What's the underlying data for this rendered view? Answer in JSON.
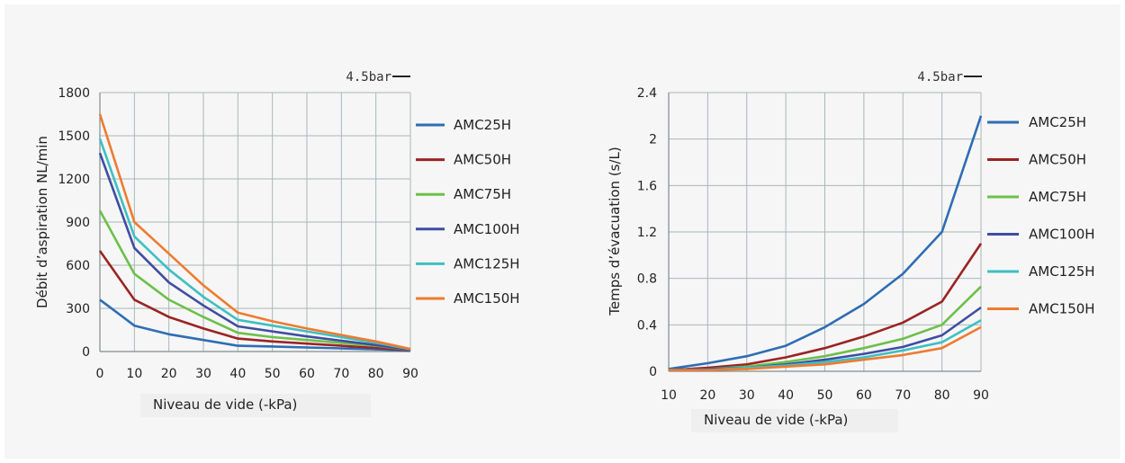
{
  "colors": {
    "AMC25H": "#2e6db4",
    "AMC50H": "#9b2424",
    "AMC75H": "#6cc04a",
    "AMC100H": "#3f4da0",
    "AMC125H": "#3fbfc2",
    "AMC150H": "#ee7b2f",
    "grid": "#a9b7b7",
    "axis": "#7f8c8c"
  },
  "chart_data": [
    {
      "type": "line",
      "annotation": "4.5bar",
      "xlabel": "Niveau de vide (-kPa)",
      "ylabel": "Débit d’aspiration NL/min",
      "x": [
        0,
        10,
        20,
        30,
        40,
        50,
        60,
        70,
        80,
        90
      ],
      "x_ticks": [
        "0",
        "10",
        "20",
        "30",
        "40",
        "50",
        "60",
        "70",
        "80",
        "90"
      ],
      "y_ticks": [
        "0",
        "300",
        "600",
        "900",
        "1200",
        "1500",
        "1800"
      ],
      "y_tick_values": [
        0,
        300,
        600,
        900,
        1200,
        1500,
        1800
      ],
      "xlim": [
        0,
        90
      ],
      "ylim": [
        0,
        1800
      ],
      "grid": true,
      "legend_position": "right",
      "series": [
        {
          "name": "AMC25H",
          "values": [
            360,
            180,
            120,
            80,
            40,
            35,
            28,
            22,
            15,
            5
          ]
        },
        {
          "name": "AMC50H",
          "values": [
            700,
            360,
            240,
            160,
            90,
            70,
            55,
            40,
            25,
            10
          ]
        },
        {
          "name": "AMC75H",
          "values": [
            980,
            540,
            360,
            240,
            130,
            100,
            80,
            60,
            40,
            12
          ]
        },
        {
          "name": "AMC100H",
          "values": [
            1380,
            720,
            480,
            320,
            175,
            140,
            105,
            75,
            45,
            14
          ]
        },
        {
          "name": "AMC125H",
          "values": [
            1480,
            800,
            570,
            380,
            220,
            180,
            140,
            100,
            60,
            16
          ]
        },
        {
          "name": "AMC150H",
          "values": [
            1650,
            900,
            680,
            460,
            270,
            210,
            160,
            115,
            70,
            18
          ]
        }
      ]
    },
    {
      "type": "line",
      "annotation": "4.5bar",
      "xlabel": "Niveau de vide (-kPa)",
      "ylabel": "Temps d’évacuation (s/L)",
      "x": [
        10,
        20,
        30,
        40,
        50,
        60,
        70,
        80,
        90
      ],
      "x_ticks": [
        "10",
        "20",
        "30",
        "40",
        "50",
        "60",
        "70",
        "80",
        "90"
      ],
      "y_ticks": [
        "0",
        "0.4",
        "0.8",
        "1.2",
        "1.6",
        "2",
        "2.4"
      ],
      "y_tick_values": [
        0,
        0.4,
        0.8,
        1.2,
        1.6,
        2.0,
        2.4
      ],
      "xlim": [
        10,
        90
      ],
      "ylim": [
        0,
        2.4
      ],
      "grid": true,
      "legend_position": "right",
      "series": [
        {
          "name": "AMC25H",
          "values": [
            0.02,
            0.07,
            0.13,
            0.22,
            0.38,
            0.58,
            0.84,
            1.2,
            2.2
          ]
        },
        {
          "name": "AMC50H",
          "values": [
            0.01,
            0.03,
            0.06,
            0.12,
            0.2,
            0.3,
            0.42,
            0.6,
            1.1
          ]
        },
        {
          "name": "AMC75H",
          "values": [
            0.01,
            0.02,
            0.04,
            0.08,
            0.13,
            0.2,
            0.28,
            0.4,
            0.73
          ]
        },
        {
          "name": "AMC100H",
          "values": [
            0.01,
            0.02,
            0.03,
            0.06,
            0.1,
            0.15,
            0.21,
            0.31,
            0.55
          ]
        },
        {
          "name": "AMC125H",
          "values": [
            0.01,
            0.01,
            0.03,
            0.05,
            0.08,
            0.12,
            0.18,
            0.25,
            0.44
          ]
        },
        {
          "name": "AMC150H",
          "values": [
            0.01,
            0.01,
            0.02,
            0.04,
            0.06,
            0.1,
            0.14,
            0.2,
            0.38
          ]
        }
      ]
    }
  ]
}
